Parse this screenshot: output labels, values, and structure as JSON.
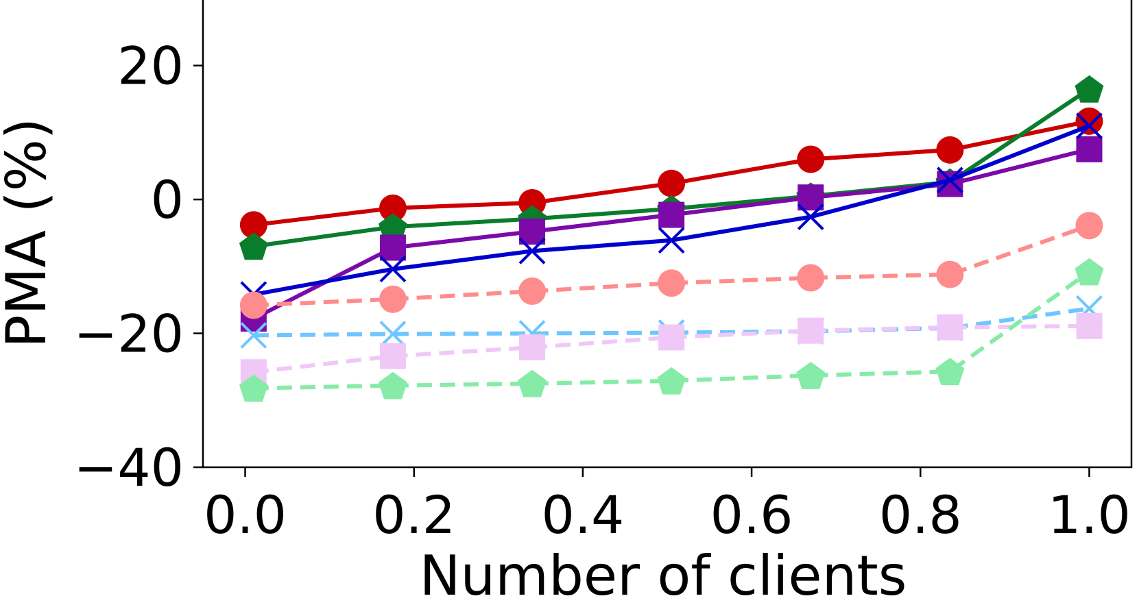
{
  "chart_data": {
    "type": "line",
    "title": "",
    "xlabel": "Number of clients",
    "ylabel": "PMA (%)",
    "xlim": [
      -0.05,
      1.05
    ],
    "ylim": [
      -40,
      30
    ],
    "xticks": [
      0.0,
      0.2,
      0.4,
      0.6,
      0.8,
      1.0
    ],
    "xtick_labels": [
      "0.0",
      "0.2",
      "0.4",
      "0.6",
      "0.8",
      "1.0"
    ],
    "yticks": [
      -40,
      -20,
      0,
      20
    ],
    "ytick_labels": [
      "−40",
      "−20",
      "0",
      "20"
    ],
    "x": [
      0.01,
      0.175,
      0.34,
      0.505,
      0.67,
      0.835,
      1.0
    ],
    "series": [
      {
        "name": "red-solid-circle",
        "color": "#cc0000",
        "style": "solid",
        "marker": "circle",
        "values": [
          -3.8,
          -1.3,
          -0.5,
          2.4,
          6.0,
          7.4,
          11.7
        ]
      },
      {
        "name": "green-solid-pentagon",
        "color": "#0a7d2c",
        "style": "solid",
        "marker": "pentagon",
        "values": [
          -7.0,
          -4.1,
          -2.9,
          -1.4,
          0.5,
          2.6,
          16.5
        ]
      },
      {
        "name": "purple-solid-square",
        "color": "#7b0aa8",
        "style": "solid",
        "marker": "square",
        "values": [
          -17.8,
          -7.2,
          -4.8,
          -2.3,
          0.3,
          2.3,
          7.5
        ]
      },
      {
        "name": "blue-solid-x",
        "color": "#0000cc",
        "style": "solid",
        "marker": "x",
        "values": [
          -14.2,
          -10.4,
          -7.7,
          -6.1,
          -2.6,
          2.9,
          11.0
        ]
      },
      {
        "name": "salmon-dashed-circle",
        "color": "#ff8c8c",
        "style": "dashed",
        "marker": "circle",
        "values": [
          -15.8,
          -14.9,
          -13.7,
          -12.5,
          -11.7,
          -11.2,
          -3.9
        ]
      },
      {
        "name": "lightblue-dashed-x",
        "color": "#6ec6ff",
        "style": "dashed",
        "marker": "x",
        "values": [
          -20.3,
          -20.1,
          -20.0,
          -19.9,
          -19.7,
          -19.2,
          -16.3
        ]
      },
      {
        "name": "pink-dashed-square",
        "color": "#f0c8f8",
        "style": "dashed",
        "marker": "square",
        "values": [
          -25.8,
          -23.4,
          -22.1,
          -20.6,
          -19.6,
          -19.1,
          -18.9
        ]
      },
      {
        "name": "lightgreen-dashed-pentagon",
        "color": "#86eba6",
        "style": "dashed",
        "marker": "pentagon",
        "values": [
          -28.2,
          -27.8,
          -27.5,
          -27.1,
          -26.3,
          -25.7,
          -10.8
        ]
      }
    ]
  }
}
